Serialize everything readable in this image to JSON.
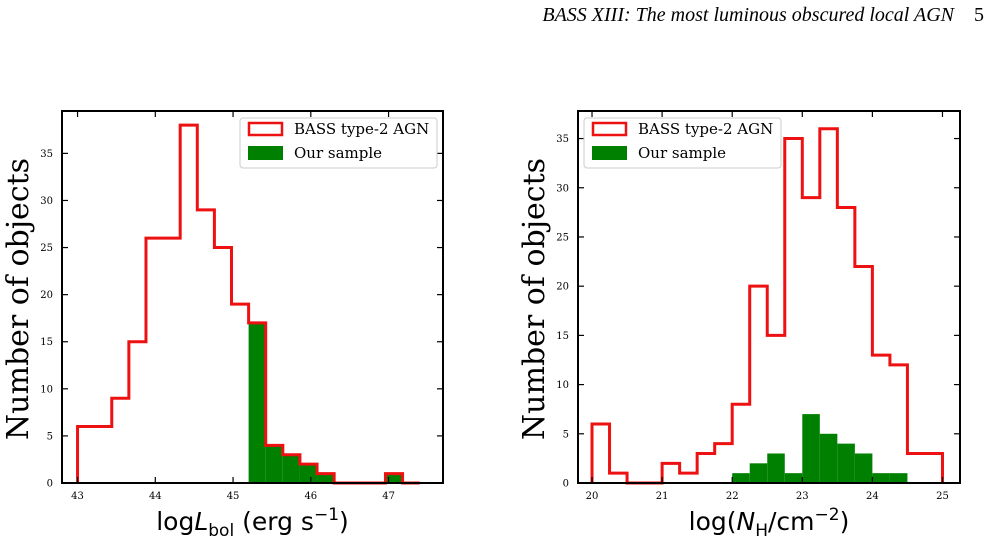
{
  "header": {
    "title": "BASS XIII: The most luminous obscured local AGN",
    "page": "5"
  },
  "chart_data": [
    {
      "type": "histogram",
      "xlabel_main": "log",
      "xlabel_sym": "L",
      "xlabel_sub": "bol",
      "xlabel_unit": " (erg s",
      "xlabel_exp": "−1",
      "xlabel_close": ")",
      "ylabel": "Number of objects",
      "xlim": [
        42.8,
        47.7
      ],
      "ylim": [
        0,
        39.5
      ],
      "xticks": [
        43,
        44,
        45,
        46,
        47
      ],
      "yticks": [
        0,
        5,
        10,
        15,
        20,
        25,
        30,
        35
      ],
      "legend": {
        "position": "top-right",
        "entries": [
          {
            "label": "BASS type-2 AGN",
            "color": "#ee1111",
            "style": "outline"
          },
          {
            "label": "Our sample",
            "color": "#008000",
            "style": "filled"
          }
        ]
      },
      "series": [
        {
          "name": "BASS type-2 AGN",
          "style": "outline",
          "color": "#ee1111",
          "bin_start": 43.0,
          "bin_width": 0.22,
          "counts": [
            6,
            6,
            9,
            15,
            26,
            26,
            38,
            29,
            25,
            19,
            17,
            4,
            3,
            2,
            1,
            0,
            0,
            0,
            1,
            0
          ]
        },
        {
          "name": "Our sample",
          "style": "filled",
          "color": "#008000",
          "bin_start": 43.0,
          "bin_width": 0.22,
          "counts": [
            0,
            0,
            0,
            0,
            0,
            0,
            0,
            0,
            0,
            0,
            17,
            4,
            3,
            2,
            1,
            0,
            0,
            0,
            1,
            0
          ]
        }
      ]
    },
    {
      "type": "histogram",
      "xlabel_main": "log(",
      "xlabel_sym": "N",
      "xlabel_sub": "H",
      "xlabel_unit": "/cm",
      "xlabel_exp": "−2",
      "xlabel_close": ")",
      "ylabel": "Number of objects",
      "xlim": [
        19.8,
        25.25
      ],
      "ylim": [
        0,
        37.8
      ],
      "xticks": [
        20,
        21,
        22,
        23,
        24,
        25
      ],
      "yticks": [
        0,
        5,
        10,
        15,
        20,
        25,
        30,
        35
      ],
      "legend": {
        "position": "top-left",
        "entries": [
          {
            "label": "BASS type-2 AGN",
            "color": "#ee1111",
            "style": "outline"
          },
          {
            "label": "Our sample",
            "color": "#008000",
            "style": "filled"
          }
        ]
      },
      "series": [
        {
          "name": "BASS type-2 AGN",
          "style": "outline",
          "color": "#ee1111",
          "bin_start": 20.0,
          "bin_width": 0.25,
          "counts": [
            6,
            1,
            0,
            0,
            2,
            1,
            3,
            4,
            8,
            20,
            15,
            35,
            29,
            36,
            28,
            22,
            13,
            12,
            3,
            3
          ]
        },
        {
          "name": "Our sample",
          "style": "filled",
          "color": "#008000",
          "bin_start": 20.0,
          "bin_width": 0.25,
          "counts": [
            0,
            0,
            0,
            0,
            0,
            0,
            0,
            0,
            1,
            2,
            3,
            1,
            7,
            5,
            4,
            3,
            1,
            1,
            0,
            0
          ]
        }
      ]
    }
  ]
}
